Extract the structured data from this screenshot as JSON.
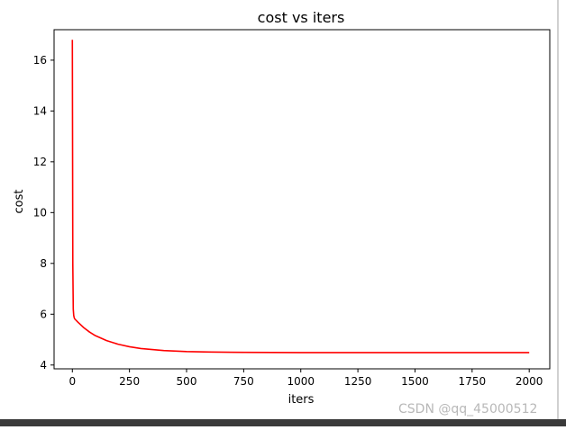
{
  "chart_data": {
    "type": "line",
    "title": "cost vs iters",
    "xlabel": "iters",
    "ylabel": "cost",
    "xlim": [
      -80,
      2090
    ],
    "ylim": [
      3.85,
      17.2
    ],
    "xticks": [
      0,
      250,
      500,
      750,
      1000,
      1250,
      1500,
      1750,
      2000
    ],
    "yticks": [
      4,
      6,
      8,
      10,
      12,
      14,
      16
    ],
    "grid": false,
    "legend": "none",
    "series": [
      {
        "color": "#ff0000",
        "x": [
          0,
          2,
          4,
          6,
          8,
          10,
          25,
          50,
          75,
          100,
          150,
          200,
          250,
          300,
          400,
          500,
          600,
          750,
          1000,
          1250,
          1500,
          1750,
          2000
        ],
        "y": [
          16.8,
          8.0,
          6.2,
          5.95,
          5.87,
          5.82,
          5.68,
          5.47,
          5.3,
          5.16,
          4.96,
          4.82,
          4.72,
          4.65,
          4.57,
          4.53,
          4.51,
          4.5,
          4.49,
          4.49,
          4.49,
          4.49,
          4.49
        ]
      }
    ]
  },
  "watermark": "CSDN @qq_45000512"
}
